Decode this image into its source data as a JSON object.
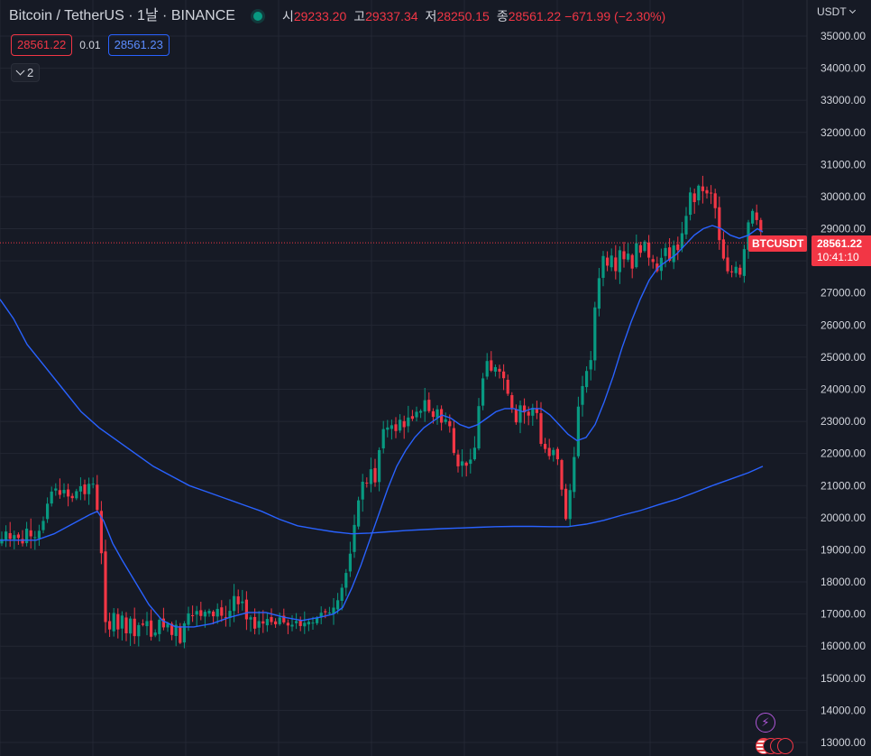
{
  "header": {
    "title": "Bitcoin / TetherUS · 1날 · BINANCE",
    "open_label": "시",
    "open": "29233.20",
    "high_label": "고",
    "high": "29337.34",
    "low_label": "저",
    "low": "28250.15",
    "close_label": "종",
    "close": "28561.22",
    "change": "−671.99 (−2.30%)"
  },
  "quotes": {
    "bid": "28561.22",
    "spread": "0.01",
    "ask": "28561.23"
  },
  "indicators_count": "2",
  "currency": "USDT",
  "price_tag": {
    "symbol": "BTCUSDT",
    "price": "28561.22",
    "countdown": "10:41:10"
  },
  "colors": {
    "background": "#161a25",
    "up": "#089981",
    "down": "#f23645",
    "ma": "#2962ff",
    "grid": "#232733"
  },
  "chart_data": {
    "type": "candlestick",
    "ylim": [
      12700,
      35500
    ],
    "y_ticks": [
      "35000.00",
      "34000.00",
      "33000.00",
      "32000.00",
      "31000.00",
      "30000.00",
      "29000.00",
      "28000.00",
      "27000.00",
      "26000.00",
      "25000.00",
      "24000.00",
      "23000.00",
      "22000.00",
      "21000.00",
      "20000.00",
      "19000.00",
      "18000.00",
      "17000.00",
      "16000.00",
      "15000.00",
      "14000.00",
      "13000.00"
    ],
    "last_price": 28561.22,
    "close_path": [
      [
        0,
        19200
      ],
      [
        6,
        19600
      ],
      [
        12,
        19300
      ],
      [
        18,
        19550
      ],
      [
        24,
        19100
      ],
      [
        30,
        19700
      ],
      [
        36,
        19300
      ],
      [
        42,
        19500
      ],
      [
        48,
        19900
      ],
      [
        54,
        20600
      ],
      [
        60,
        21000
      ],
      [
        66,
        20700
      ],
      [
        72,
        20900
      ],
      [
        78,
        20500
      ],
      [
        84,
        20800
      ],
      [
        90,
        21000
      ],
      [
        96,
        20600
      ],
      [
        100,
        21300
      ],
      [
        104,
        21000
      ],
      [
        108,
        20200
      ],
      [
        111,
        19500
      ],
      [
        114,
        18200
      ],
      [
        116,
        16200
      ],
      [
        118,
        17300
      ],
      [
        121,
        16300
      ],
      [
        124,
        17400
      ],
      [
        127,
        16900
      ],
      [
        131,
        16500
      ],
      [
        135,
        17000
      ],
      [
        140,
        16400
      ],
      [
        145,
        16900
      ],
      [
        150,
        16200
      ],
      [
        155,
        16800
      ],
      [
        160,
        16600
      ],
      [
        165,
        16900
      ],
      [
        168,
        16200
      ],
      [
        172,
        16400
      ],
      [
        176,
        16900
      ],
      [
        180,
        16500
      ],
      [
        185,
        16800
      ],
      [
        190,
        16300
      ],
      [
        195,
        16700
      ],
      [
        199,
        16000
      ],
      [
        203,
        16500
      ],
      [
        207,
        17100
      ],
      [
        212,
        16900
      ],
      [
        218,
        17100
      ],
      [
        224,
        16900
      ],
      [
        230,
        17200
      ],
      [
        236,
        16900
      ],
      [
        242,
        17200
      ],
      [
        248,
        16800
      ],
      [
        254,
        17000
      ],
      [
        258,
        17400
      ],
      [
        262,
        17800
      ],
      [
        266,
        16900
      ],
      [
        270,
        17600
      ],
      [
        274,
        16700
      ],
      [
        278,
        16900
      ],
      [
        282,
        16500
      ],
      [
        286,
        16800
      ],
      [
        292,
        16700
      ],
      [
        298,
        16900
      ],
      [
        304,
        16600
      ],
      [
        310,
        16900
      ],
      [
        316,
        16700
      ],
      [
        322,
        16600
      ],
      [
        328,
        16800
      ],
      [
        334,
        16600
      ],
      [
        340,
        16800
      ],
      [
        346,
        16700
      ],
      [
        352,
        16900
      ],
      [
        358,
        17100
      ],
      [
        364,
        17000
      ],
      [
        370,
        17200
      ],
      [
        376,
        17500
      ],
      [
        380,
        17900
      ],
      [
        384,
        18300
      ],
      [
        388,
        18800
      ],
      [
        392,
        19600
      ],
      [
        396,
        20300
      ],
      [
        400,
        20900
      ],
      [
        404,
        21300
      ],
      [
        408,
        21000
      ],
      [
        412,
        21600
      ],
      [
        416,
        21100
      ],
      [
        420,
        22000
      ],
      [
        424,
        22700
      ],
      [
        428,
        22900
      ],
      [
        432,
        22700
      ],
      [
        436,
        23000
      ],
      [
        440,
        22600
      ],
      [
        444,
        23100
      ],
      [
        448,
        22800
      ],
      [
        452,
        23200
      ],
      [
        456,
        22800
      ],
      [
        460,
        23600
      ],
      [
        464,
        23000
      ],
      [
        468,
        23500
      ],
      [
        472,
        23700
      ],
      [
        476,
        23300
      ],
      [
        480,
        23100
      ],
      [
        484,
        23500
      ],
      [
        488,
        23000
      ],
      [
        492,
        22900
      ],
      [
        496,
        23200
      ],
      [
        500,
        22700
      ],
      [
        504,
        21900
      ],
      [
        508,
        21600
      ],
      [
        512,
        21800
      ],
      [
        516,
        21500
      ],
      [
        520,
        21900
      ],
      [
        524,
        21700
      ],
      [
        528,
        22500
      ],
      [
        532,
        23800
      ],
      [
        536,
        24400
      ],
      [
        540,
        24900
      ],
      [
        544,
        24500
      ],
      [
        548,
        24900
      ],
      [
        552,
        24300
      ],
      [
        556,
        24800
      ],
      [
        560,
        24100
      ],
      [
        564,
        23800
      ],
      [
        568,
        23400
      ],
      [
        572,
        22900
      ],
      [
        576,
        23600
      ],
      [
        580,
        23200
      ],
      [
        584,
        23400
      ],
      [
        588,
        23000
      ],
      [
        592,
        23600
      ],
      [
        596,
        23200
      ],
      [
        600,
        22300
      ],
      [
        604,
        22200
      ],
      [
        608,
        21800
      ],
      [
        612,
        22200
      ],
      [
        616,
        22000
      ],
      [
        620,
        21700
      ],
      [
        624,
        20600
      ],
      [
        627,
        19900
      ],
      [
        630,
        20200
      ],
      [
        634,
        21400
      ],
      [
        638,
        22100
      ],
      [
        642,
        23700
      ],
      [
        646,
        24100
      ],
      [
        650,
        24600
      ],
      [
        654,
        24400
      ],
      [
        658,
        26100
      ],
      [
        662,
        27100
      ],
      [
        666,
        27700
      ],
      [
        670,
        28300
      ],
      [
        674,
        27800
      ],
      [
        678,
        28200
      ],
      [
        682,
        27500
      ],
      [
        686,
        28400
      ],
      [
        690,
        28200
      ],
      [
        694,
        27900
      ],
      [
        698,
        28400
      ],
      [
        702,
        27600
      ],
      [
        706,
        28600
      ],
      [
        710,
        28200
      ],
      [
        714,
        28700
      ],
      [
        718,
        28300
      ],
      [
        722,
        27800
      ],
      [
        726,
        28100
      ],
      [
        730,
        27500
      ],
      [
        734,
        28200
      ],
      [
        738,
        28400
      ],
      [
        742,
        27900
      ],
      [
        746,
        28600
      ],
      [
        750,
        28200
      ],
      [
        754,
        28500
      ],
      [
        758,
        29100
      ],
      [
        762,
        29500
      ],
      [
        766,
        30200
      ],
      [
        770,
        29800
      ],
      [
        774,
        30400
      ],
      [
        778,
        30100
      ],
      [
        782,
        30300
      ],
      [
        786,
        29900
      ],
      [
        790,
        30200
      ],
      [
        794,
        29500
      ],
      [
        798,
        28600
      ],
      [
        802,
        28100
      ],
      [
        806,
        27800
      ],
      [
        810,
        27300
      ],
      [
        814,
        28200
      ],
      [
        818,
        27500
      ],
      [
        822,
        27600
      ],
      [
        826,
        28500
      ],
      [
        830,
        29200
      ],
      [
        834,
        29600
      ],
      [
        838,
        29300
      ],
      [
        842,
        29200
      ],
      [
        846,
        28561
      ]
    ],
    "ma_fast": [
      [
        0,
        19300
      ],
      [
        40,
        19300
      ],
      [
        60,
        19500
      ],
      [
        80,
        19800
      ],
      [
        100,
        20100
      ],
      [
        108,
        20200
      ],
      [
        115,
        19900
      ],
      [
        125,
        19200
      ],
      [
        135,
        18700
      ],
      [
        150,
        18000
      ],
      [
        165,
        17300
      ],
      [
        180,
        16800
      ],
      [
        195,
        16600
      ],
      [
        215,
        16600
      ],
      [
        235,
        16700
      ],
      [
        255,
        16900
      ],
      [
        275,
        17050
      ],
      [
        295,
        17050
      ],
      [
        315,
        16900
      ],
      [
        335,
        16800
      ],
      [
        355,
        16900
      ],
      [
        370,
        17000
      ],
      [
        380,
        17200
      ],
      [
        390,
        17800
      ],
      [
        400,
        18500
      ],
      [
        410,
        19300
      ],
      [
        420,
        20100
      ],
      [
        430,
        20900
      ],
      [
        440,
        21600
      ],
      [
        450,
        22100
      ],
      [
        460,
        22500
      ],
      [
        470,
        22800
      ],
      [
        480,
        23000
      ],
      [
        490,
        23200
      ],
      [
        500,
        23100
      ],
      [
        510,
        22900
      ],
      [
        520,
        22800
      ],
      [
        530,
        22900
      ],
      [
        540,
        23100
      ],
      [
        550,
        23300
      ],
      [
        560,
        23400
      ],
      [
        570,
        23400
      ],
      [
        580,
        23300
      ],
      [
        590,
        23400
      ],
      [
        600,
        23400
      ],
      [
        610,
        23200
      ],
      [
        620,
        22900
      ],
      [
        630,
        22600
      ],
      [
        640,
        22400
      ],
      [
        650,
        22500
      ],
      [
        660,
        22900
      ],
      [
        670,
        23600
      ],
      [
        680,
        24400
      ],
      [
        690,
        25300
      ],
      [
        700,
        26100
      ],
      [
        710,
        26800
      ],
      [
        720,
        27400
      ],
      [
        730,
        27800
      ],
      [
        740,
        28000
      ],
      [
        750,
        28200
      ],
      [
        760,
        28500
      ],
      [
        770,
        28800
      ],
      [
        780,
        29000
      ],
      [
        790,
        29100
      ],
      [
        800,
        29000
      ],
      [
        810,
        28800
      ],
      [
        820,
        28700
      ],
      [
        830,
        28800
      ],
      [
        840,
        29000
      ],
      [
        846,
        28900
      ]
    ],
    "ma_slow": [
      [
        0,
        26800
      ],
      [
        15,
        26200
      ],
      [
        30,
        25400
      ],
      [
        50,
        24700
      ],
      [
        70,
        24000
      ],
      [
        90,
        23300
      ],
      [
        110,
        22800
      ],
      [
        130,
        22400
      ],
      [
        150,
        22000
      ],
      [
        170,
        21600
      ],
      [
        190,
        21300
      ],
      [
        210,
        21000
      ],
      [
        230,
        20800
      ],
      [
        250,
        20600
      ],
      [
        270,
        20400
      ],
      [
        290,
        20200
      ],
      [
        310,
        19950
      ],
      [
        330,
        19750
      ],
      [
        350,
        19650
      ],
      [
        370,
        19560
      ],
      [
        390,
        19500
      ],
      [
        410,
        19520
      ],
      [
        430,
        19560
      ],
      [
        450,
        19600
      ],
      [
        470,
        19630
      ],
      [
        490,
        19660
      ],
      [
        510,
        19680
      ],
      [
        530,
        19700
      ],
      [
        550,
        19720
      ],
      [
        570,
        19730
      ],
      [
        590,
        19730
      ],
      [
        610,
        19720
      ],
      [
        630,
        19720
      ],
      [
        650,
        19800
      ],
      [
        670,
        19920
      ],
      [
        690,
        20080
      ],
      [
        710,
        20220
      ],
      [
        730,
        20400
      ],
      [
        750,
        20570
      ],
      [
        770,
        20780
      ],
      [
        790,
        21000
      ],
      [
        810,
        21200
      ],
      [
        830,
        21400
      ],
      [
        846,
        21600
      ]
    ]
  }
}
